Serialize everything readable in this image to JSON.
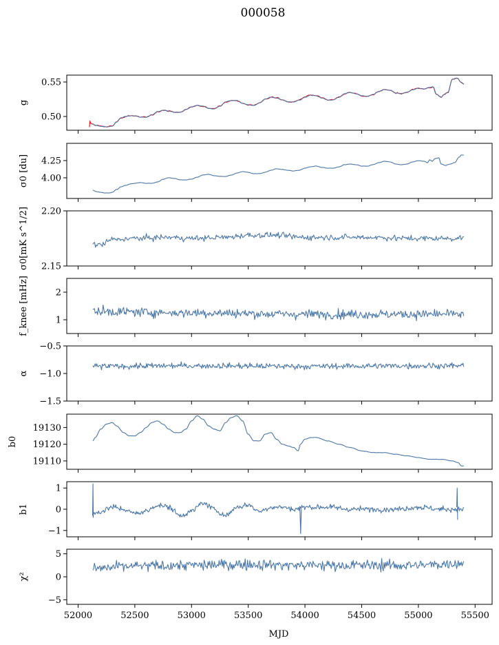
{
  "title": "000058",
  "xlabel": "MJD",
  "chart_data": [
    {
      "type": "line",
      "ylabel": "g",
      "xlim": [
        51900,
        55650
      ],
      "ylim": [
        0.48,
        0.56
      ],
      "yticks": [
        0.5,
        0.55
      ],
      "ytick_labels": [
        "0.50",
        "0.55"
      ],
      "style": "smooth",
      "noise": 0.0005,
      "series": [
        {
          "color": "#ff0000",
          "width": 2.8,
          "noise": 0.0013,
          "x": [
            52100,
            52105,
            52110,
            52125,
            52160,
            52200,
            52250,
            52300,
            52340,
            52380,
            52420,
            52460,
            52500,
            52550,
            52600,
            52650,
            52700,
            52750,
            52800,
            52850,
            52900,
            52950,
            53000,
            53050,
            53100,
            53150,
            53200,
            53250,
            53300,
            53350,
            53400,
            53450,
            53500,
            53550,
            53600,
            53650,
            53700,
            53750,
            53800,
            53850,
            53900,
            53950,
            54000,
            54050,
            54100,
            54150,
            54200,
            54250,
            54300,
            54350,
            54400,
            54450,
            54500,
            54550,
            54600,
            54650,
            54700,
            54750,
            54800,
            54850,
            54900,
            54950,
            55000,
            55050,
            55100,
            55130,
            55160,
            55200,
            55230,
            55260,
            55300,
            55340,
            55380,
            55400
          ],
          "y": [
            0.484,
            0.493,
            0.49,
            0.489,
            0.487,
            0.486,
            0.485,
            0.486,
            0.492,
            0.498,
            0.5,
            0.501,
            0.501,
            0.499,
            0.499,
            0.502,
            0.507,
            0.509,
            0.508,
            0.506,
            0.506,
            0.51,
            0.514,
            0.516,
            0.515,
            0.512,
            0.511,
            0.515,
            0.521,
            0.523,
            0.523,
            0.519,
            0.517,
            0.516,
            0.52,
            0.525,
            0.528,
            0.527,
            0.524,
            0.521,
            0.521,
            0.524,
            0.528,
            0.531,
            0.53,
            0.527,
            0.524,
            0.524,
            0.528,
            0.533,
            0.535,
            0.533,
            0.53,
            0.529,
            0.532,
            0.536,
            0.539,
            0.538,
            0.534,
            0.533,
            0.535,
            0.539,
            0.541,
            0.54,
            0.542,
            0.543,
            0.532,
            0.528,
            0.532,
            0.535,
            0.554,
            0.556,
            0.549,
            0.547
          ]
        },
        {
          "color": "#4a76a8",
          "width": 1.2,
          "noise": 0.0006,
          "x": [
            52125,
            52160,
            52200,
            52250,
            52300,
            52340,
            52380,
            52420,
            52460,
            52500,
            52550,
            52600,
            52650,
            52700,
            52750,
            52800,
            52850,
            52900,
            52950,
            53000,
            53050,
            53100,
            53150,
            53200,
            53250,
            53300,
            53350,
            53400,
            53450,
            53500,
            53550,
            53600,
            53650,
            53700,
            53750,
            53800,
            53850,
            53900,
            53950,
            54000,
            54050,
            54100,
            54150,
            54200,
            54250,
            54300,
            54350,
            54400,
            54450,
            54500,
            54550,
            54600,
            54650,
            54700,
            54750,
            54800,
            54850,
            54900,
            54950,
            55000,
            55050,
            55100,
            55130,
            55160,
            55200,
            55230,
            55260,
            55300,
            55340,
            55380,
            55400
          ],
          "y": [
            0.489,
            0.487,
            0.486,
            0.485,
            0.486,
            0.492,
            0.498,
            0.5,
            0.501,
            0.501,
            0.499,
            0.499,
            0.502,
            0.507,
            0.509,
            0.508,
            0.506,
            0.506,
            0.51,
            0.514,
            0.516,
            0.515,
            0.512,
            0.511,
            0.515,
            0.521,
            0.523,
            0.523,
            0.519,
            0.517,
            0.516,
            0.52,
            0.525,
            0.528,
            0.527,
            0.524,
            0.521,
            0.521,
            0.524,
            0.528,
            0.531,
            0.53,
            0.527,
            0.524,
            0.524,
            0.528,
            0.533,
            0.535,
            0.533,
            0.53,
            0.529,
            0.532,
            0.536,
            0.539,
            0.538,
            0.534,
            0.533,
            0.535,
            0.539,
            0.541,
            0.54,
            0.542,
            0.543,
            0.532,
            0.528,
            0.532,
            0.535,
            0.554,
            0.556,
            0.549,
            0.547
          ]
        }
      ]
    },
    {
      "type": "line",
      "ylabel": "σ0 [du]",
      "xlim": [
        51900,
        55650
      ],
      "ylim": [
        3.7,
        4.5
      ],
      "yticks": [
        4.0,
        4.25
      ],
      "ytick_labels": [
        "4.00",
        "4.25"
      ],
      "style": "smooth",
      "noise": 0.004,
      "series": [
        {
          "color": "#4a76a8",
          "x": [
            52130,
            52160,
            52200,
            52240,
            52280,
            52300,
            52340,
            52380,
            52420,
            52460,
            52500,
            52550,
            52600,
            52650,
            52700,
            52750,
            52800,
            52850,
            52900,
            52950,
            53000,
            53050,
            53100,
            53150,
            53200,
            53250,
            53300,
            53350,
            53400,
            53450,
            53500,
            53550,
            53600,
            53650,
            53700,
            53750,
            53800,
            53850,
            53900,
            53950,
            54000,
            54050,
            54100,
            54150,
            54200,
            54250,
            54300,
            54350,
            54400,
            54450,
            54500,
            54550,
            54600,
            54650,
            54700,
            54750,
            54800,
            54850,
            54900,
            54950,
            55000,
            55050,
            55080,
            55100,
            55120,
            55150,
            55180,
            55200,
            55240,
            55280,
            55320,
            55360,
            55380,
            55400
          ],
          "y": [
            3.82,
            3.8,
            3.79,
            3.78,
            3.78,
            3.79,
            3.83,
            3.87,
            3.89,
            3.91,
            3.92,
            3.93,
            3.92,
            3.92,
            3.94,
            3.98,
            4.0,
            3.99,
            3.97,
            3.97,
            3.98,
            4.01,
            4.04,
            4.05,
            4.03,
            4.02,
            4.02,
            4.04,
            4.07,
            4.09,
            4.08,
            4.06,
            4.06,
            4.08,
            4.11,
            4.13,
            4.12,
            4.11,
            4.1,
            4.11,
            4.14,
            4.16,
            4.17,
            4.15,
            4.14,
            4.14,
            4.16,
            4.19,
            4.2,
            4.19,
            4.17,
            4.17,
            4.19,
            4.22,
            4.24,
            4.23,
            4.2,
            4.19,
            4.2,
            4.23,
            4.25,
            4.24,
            4.22,
            4.26,
            4.24,
            4.28,
            4.29,
            4.2,
            4.18,
            4.2,
            4.22,
            4.3,
            4.33,
            4.33
          ]
        }
      ]
    },
    {
      "type": "line",
      "ylabel": "σ0[mK s^1/2]",
      "xlim": [
        51900,
        55650
      ],
      "ylim": [
        2.15,
        2.2
      ],
      "yticks": [
        2.15,
        2.2
      ],
      "ytick_labels": [
        "2.15",
        "2.20"
      ],
      "style": "noisy",
      "n": 430,
      "noise": 0.0022,
      "series": [
        {
          "color": "#4a76a8",
          "x": [
            52130,
            52200,
            52300,
            52500,
            52800,
            53000,
            53300,
            53500,
            53700,
            54000,
            54300,
            54600,
            54900,
            55100,
            55300,
            55400
          ],
          "y": [
            2.17,
            2.169,
            2.174,
            2.175,
            2.176,
            2.175,
            2.176,
            2.178,
            2.178,
            2.176,
            2.176,
            2.176,
            2.175,
            2.175,
            2.175,
            2.176
          ]
        }
      ]
    },
    {
      "type": "line",
      "ylabel": "f_knee [mHz]",
      "xlim": [
        51900,
        55650
      ],
      "ylim": [
        0.5,
        2.5
      ],
      "yticks": [
        1,
        2
      ],
      "ytick_labels": [
        "1",
        "2"
      ],
      "style": "noisy",
      "n": 470,
      "noise": 0.14,
      "series": [
        {
          "color": "#4a76a8",
          "x": [
            52130,
            53000,
            54000,
            55000,
            55400
          ],
          "y": [
            1.3,
            1.25,
            1.2,
            1.2,
            1.2
          ]
        }
      ]
    },
    {
      "type": "line",
      "ylabel": "α",
      "xlim": [
        51900,
        55650
      ],
      "ylim": [
        -1.5,
        -0.5
      ],
      "yticks": [
        -1.5,
        -1.0,
        -0.5
      ],
      "ytick_labels": [
        "−1.5",
        "−1.0",
        "−0.5"
      ],
      "style": "noisy",
      "n": 470,
      "noise": 0.045,
      "series": [
        {
          "color": "#4a76a8",
          "x": [
            52130,
            53000,
            54000,
            55000,
            55400
          ],
          "y": [
            -0.87,
            -0.86,
            -0.87,
            -0.86,
            -0.86
          ]
        }
      ]
    },
    {
      "type": "line",
      "ylabel": "b0",
      "xlim": [
        51900,
        55650
      ],
      "ylim": [
        19105,
        19138
      ],
      "yticks": [
        19110,
        19120,
        19130
      ],
      "ytick_labels": [
        "19110",
        "19120",
        "19130"
      ],
      "style": "smooth",
      "noise": 0.18,
      "series": [
        {
          "color": "#4a76a8",
          "x": [
            52130,
            52150,
            52200,
            52250,
            52300,
            52340,
            52400,
            52450,
            52500,
            52550,
            52600,
            52650,
            52700,
            52750,
            52800,
            52850,
            52900,
            52950,
            53000,
            53050,
            53100,
            53150,
            53200,
            53250,
            53300,
            53350,
            53400,
            53450,
            53500,
            53550,
            53600,
            53650,
            53700,
            53750,
            53800,
            53850,
            53900,
            53940,
            53960,
            54000,
            54050,
            54100,
            54200,
            54300,
            54400,
            54500,
            54600,
            54700,
            54800,
            54900,
            55000,
            55100,
            55200,
            55300,
            55350,
            55380,
            55400
          ],
          "y": [
            19122,
            19124,
            19129,
            19132,
            19133,
            19131,
            19127,
            19125,
            19125,
            19127,
            19130,
            19133,
            19134,
            19132,
            19129,
            19127,
            19127,
            19129,
            19134,
            19137,
            19135,
            19131,
            19129,
            19128,
            19133,
            19136,
            19137,
            19134,
            19126,
            19122,
            19122,
            19126,
            19127,
            19123,
            19120,
            19119,
            19118,
            19116,
            19120,
            19123,
            19124,
            19124,
            19122,
            19120,
            19118,
            19116,
            19115,
            19115,
            19114,
            19113,
            19112,
            19111,
            19111,
            19110,
            19109,
            19107,
            19107
          ]
        }
      ]
    },
    {
      "type": "line",
      "ylabel": "b1",
      "xlim": [
        51900,
        55650
      ],
      "ylim": [
        -1.3,
        1.3
      ],
      "yticks": [
        -1,
        0,
        1
      ],
      "ytick_labels": [
        "−1",
        "0",
        "1"
      ],
      "style": "noisy",
      "n": 520,
      "noise": 0.11,
      "series": [
        {
          "color": "#4a76a8",
          "x": [
            52130,
            52150,
            52200,
            52300,
            52400,
            52500,
            52600,
            52700,
            52800,
            52900,
            53000,
            53100,
            53200,
            53300,
            53400,
            53500,
            53600,
            53700,
            53800,
            53900,
            54000,
            54200,
            54400,
            54600,
            54800,
            55000,
            55200,
            55400
          ],
          "y": [
            -0.3,
            -0.2,
            -0.1,
            0.1,
            0.0,
            -0.2,
            -0.1,
            0.2,
            0.1,
            -0.3,
            -0.1,
            0.3,
            0.0,
            -0.3,
            0.1,
            0.2,
            -0.1,
            0.1,
            0.1,
            0.0,
            0.1,
            0.1,
            0.0,
            0.0,
            0.0,
            0.1,
            0.0,
            0.0
          ]
        }
      ]
    },
    {
      "type": "line",
      "ylabel": "χ²",
      "xlim": [
        51900,
        55650
      ],
      "ylim": [
        -6,
        6
      ],
      "yticks": [
        -5,
        0,
        5
      ],
      "ytick_labels": [
        "−5",
        "0",
        "5"
      ],
      "style": "noisy",
      "n": 470,
      "noise": 1.0,
      "series": [
        {
          "color": "#4a76a8",
          "x": [
            52130,
            52500,
            53000,
            53500,
            54000,
            54500,
            55000,
            55400
          ],
          "y": [
            1.8,
            2.3,
            2.5,
            2.7,
            2.5,
            2.5,
            2.5,
            3.0
          ]
        }
      ]
    }
  ],
  "xaxis": {
    "ticks": [
      52000,
      52500,
      53000,
      53500,
      54000,
      54500,
      55000,
      55500
    ],
    "tick_labels": [
      "52000",
      "52500",
      "53000",
      "53500",
      "54000",
      "54500",
      "55000",
      "55500"
    ]
  },
  "spikes": [
    {
      "panel": 6,
      "x": [
        52128,
        52131,
        52134
      ],
      "y": [
        -0.3,
        1.2,
        -0.4
      ]
    },
    {
      "panel": 6,
      "x": [
        53955,
        53962,
        53968
      ],
      "y": [
        0.1,
        -1.15,
        0.0
      ]
    },
    {
      "panel": 6,
      "x": [
        55338,
        55342,
        55346
      ],
      "y": [
        0.1,
        1.0,
        -0.5
      ]
    }
  ]
}
